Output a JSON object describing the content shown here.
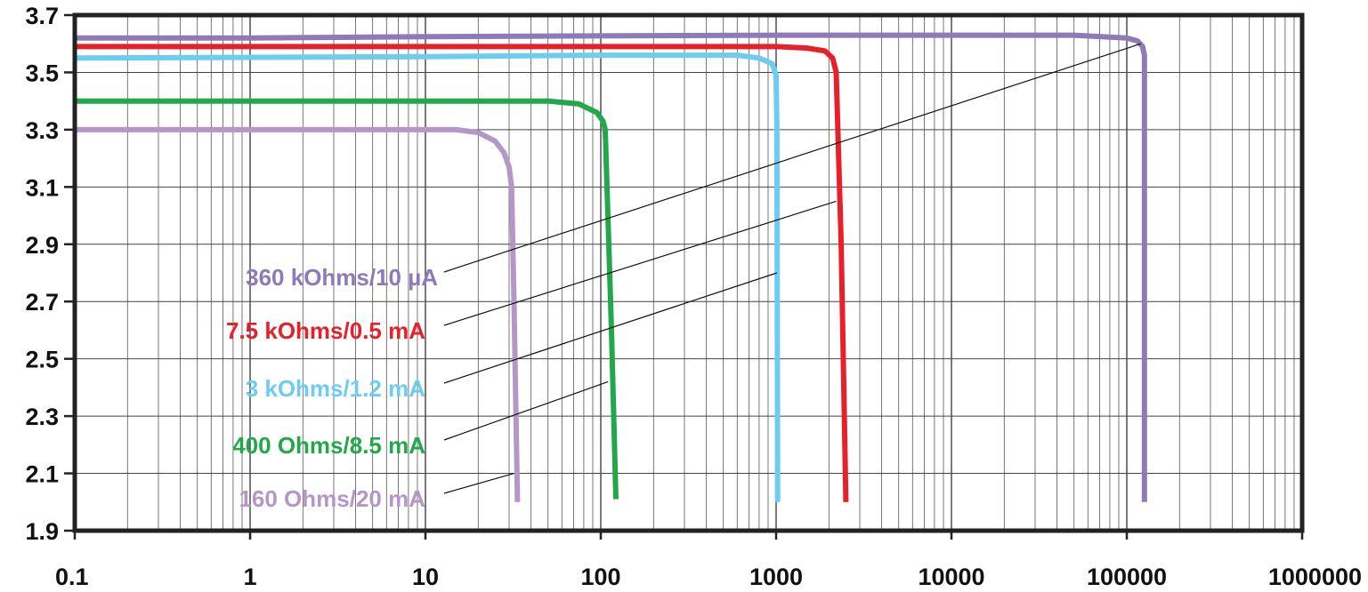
{
  "chart_data": {
    "type": "line",
    "title": "",
    "xlabel": "",
    "ylabel": "",
    "x_scale": "log",
    "xlim": [
      0.1,
      1000000
    ],
    "ylim": [
      1.9,
      3.7
    ],
    "grid": true,
    "x_ticks": [
      {
        "value": 0.1,
        "label": "0.1"
      },
      {
        "value": 1,
        "label": "1"
      },
      {
        "value": 10,
        "label": "10"
      },
      {
        "value": 100,
        "label": "100"
      },
      {
        "value": 1000,
        "label": "1000"
      },
      {
        "value": 10000,
        "label": "10000"
      },
      {
        "value": 100000,
        "label": "100000"
      },
      {
        "value": 1000000,
        "label": "1000000"
      }
    ],
    "y_ticks": [
      {
        "value": 3.7,
        "label": "3.7"
      },
      {
        "value": 3.5,
        "label": "3.5"
      },
      {
        "value": 3.3,
        "label": "3.3"
      },
      {
        "value": 3.1,
        "label": "3.1"
      },
      {
        "value": 2.9,
        "label": "2.9"
      },
      {
        "value": 2.7,
        "label": "2.7"
      },
      {
        "value": 2.5,
        "label": "2.5"
      },
      {
        "value": 2.3,
        "label": "2.3"
      },
      {
        "value": 2.1,
        "label": "2.1"
      },
      {
        "value": 1.9,
        "label": "1.9"
      }
    ],
    "series": [
      {
        "name": "360 kOhms/10 µA",
        "color": "#8f7ab8",
        "x": [
          0.1,
          1,
          10,
          1000,
          10000,
          50000,
          100000,
          115000,
          123000,
          126000,
          126000
        ],
        "y": [
          3.62,
          3.62,
          3.625,
          3.63,
          3.63,
          3.63,
          3.62,
          3.61,
          3.59,
          3.56,
          2.0
        ],
        "label_anchor": {
          "x": 120000,
          "y": 3.6
        }
      },
      {
        "name": "7.5 kOhms/0.5 mA",
        "color": "#e8202a",
        "x": [
          0.1,
          10,
          100,
          1000,
          1500,
          1900,
          2100,
          2200,
          2350,
          2500
        ],
        "y": [
          3.59,
          3.59,
          3.59,
          3.59,
          3.585,
          3.575,
          3.55,
          3.5,
          2.9,
          2.0
        ],
        "label_anchor": {
          "x": 2200,
          "y": 3.05
        }
      },
      {
        "name": "3 kOhms/1.2 mA",
        "color": "#6ccdf1",
        "x": [
          0.1,
          10,
          100,
          600,
          800,
          950,
          1000,
          1010,
          1020
        ],
        "y": [
          3.55,
          3.555,
          3.56,
          3.56,
          3.55,
          3.53,
          3.49,
          3.3,
          2.0
        ],
        "label_anchor": {
          "x": 1010,
          "y": 2.8
        }
      },
      {
        "name": "400 Ohms/8.5 mA",
        "color": "#22a84a",
        "x": [
          0.1,
          10,
          50,
          75,
          95,
          103,
          106,
          115,
          122
        ],
        "y": [
          3.4,
          3.4,
          3.4,
          3.39,
          3.36,
          3.33,
          3.3,
          2.6,
          2.01
        ],
        "label_anchor": {
          "x": 110,
          "y": 2.42
        }
      },
      {
        "name": "160 Ohms/20 mA",
        "color": "#b497c8",
        "x": [
          0.1,
          10,
          15,
          20,
          25,
          28,
          30,
          31,
          32,
          33.5
        ],
        "y": [
          3.3,
          3.3,
          3.3,
          3.29,
          3.26,
          3.22,
          3.17,
          3.1,
          2.7,
          2.0
        ],
        "label_anchor": {
          "x": 32,
          "y": 2.1
        }
      }
    ]
  }
}
